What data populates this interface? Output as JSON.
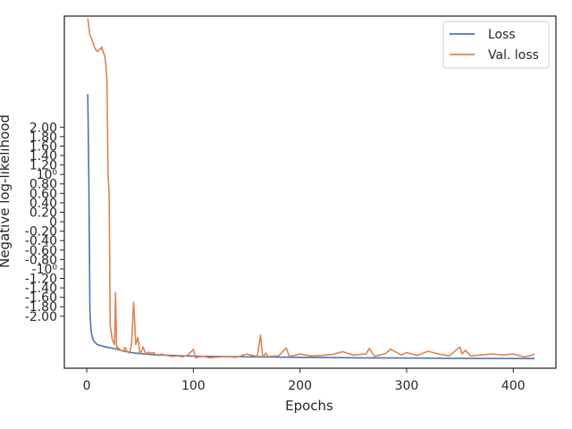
{
  "chart_data": {
    "type": "line",
    "xlabel": "Epochs",
    "ylabel": "Negative log-likelihood",
    "xlim": [
      -21,
      440
    ],
    "ylim": [
      -3.1,
      4.35
    ],
    "xticks": [
      0,
      100,
      200,
      300,
      400
    ],
    "yticks": [
      -2.0,
      -1.8,
      -1.6,
      -1.4,
      -1.2,
      -1.0,
      -0.8,
      -0.6,
      -0.4,
      -0.2,
      0.0,
      0.2,
      0.4,
      0.6,
      0.8,
      1.0,
      1.2,
      1.4,
      1.6,
      1.8,
      2.0
    ],
    "ytick_labels": [
      "-2.00",
      "-1.80",
      "-1.60",
      "-1.40",
      "-1.20",
      "-10⁰",
      "-0.80",
      "-0.60",
      "-0.40",
      "-0.20",
      "0",
      "0.20",
      "0.40",
      "0.60",
      "0.80",
      "10⁰",
      "1.20",
      "1.40",
      "1.60",
      "1.80",
      "2.00"
    ],
    "grid": false,
    "legend_position": "top-right",
    "series": [
      {
        "name": "Loss",
        "color": "#4c72b0",
        "x": [
          1,
          2,
          3,
          4,
          5,
          6,
          8,
          10,
          13,
          16,
          20,
          25,
          30,
          35,
          40,
          45,
          50,
          55,
          60,
          70,
          80,
          90,
          100,
          120,
          140,
          160,
          180,
          200,
          230,
          260,
          300,
          340,
          380,
          420
        ],
        "y": [
          2.7,
          0.9,
          -1.9,
          -2.3,
          -2.42,
          -2.5,
          -2.56,
          -2.6,
          -2.62,
          -2.64,
          -2.66,
          -2.68,
          -2.71,
          -2.74,
          -2.76,
          -2.78,
          -2.79,
          -2.8,
          -2.81,
          -2.82,
          -2.83,
          -2.84,
          -2.845,
          -2.85,
          -2.855,
          -2.86,
          -2.865,
          -2.87,
          -2.875,
          -2.88,
          -2.885,
          -2.89,
          -2.893,
          -2.895
        ]
      },
      {
        "name": "Val. loss",
        "color": "#dd8452",
        "x": [
          1,
          3,
          5,
          7,
          9,
          10,
          11,
          12,
          13,
          14,
          15,
          17,
          18,
          19,
          20,
          21,
          22,
          24,
          26,
          27,
          28,
          29,
          30,
          32,
          34,
          36,
          38,
          40,
          42,
          44,
          45,
          46,
          48,
          50,
          53,
          55,
          58,
          60,
          63,
          65,
          68,
          70,
          75,
          80,
          85,
          90,
          95,
          100,
          102,
          105,
          110,
          115,
          120,
          125,
          130,
          140,
          150,
          160,
          163,
          165,
          168,
          170,
          180,
          187,
          190,
          200,
          210,
          220,
          230,
          240,
          250,
          262,
          265,
          270,
          280,
          285,
          295,
          300,
          310,
          320,
          330,
          340,
          350,
          352,
          355,
          360,
          370,
          380,
          390,
          400,
          410,
          415,
          420
        ],
        "y": [
          4.3,
          3.95,
          3.85,
          3.7,
          3.62,
          3.6,
          3.62,
          3.65,
          3.65,
          3.7,
          3.62,
          3.5,
          3.3,
          3.0,
          1.0,
          0.6,
          -2.2,
          -2.5,
          -2.6,
          -1.5,
          -2.7,
          -2.65,
          -2.68,
          -2.72,
          -2.74,
          -2.66,
          -2.75,
          -2.78,
          -2.6,
          -1.7,
          -2.1,
          -2.6,
          -2.45,
          -2.8,
          -2.65,
          -2.8,
          -2.76,
          -2.78,
          -2.77,
          -2.82,
          -2.83,
          -2.8,
          -2.83,
          -2.85,
          -2.84,
          -2.86,
          -2.82,
          -2.7,
          -2.88,
          -2.86,
          -2.85,
          -2.88,
          -2.87,
          -2.86,
          -2.85,
          -2.87,
          -2.8,
          -2.85,
          -2.4,
          -2.87,
          -2.78,
          -2.85,
          -2.84,
          -2.67,
          -2.85,
          -2.8,
          -2.84,
          -2.83,
          -2.81,
          -2.75,
          -2.82,
          -2.8,
          -2.68,
          -2.85,
          -2.79,
          -2.7,
          -2.82,
          -2.77,
          -2.83,
          -2.74,
          -2.8,
          -2.84,
          -2.65,
          -2.8,
          -2.72,
          -2.84,
          -2.82,
          -2.8,
          -2.82,
          -2.8,
          -2.86,
          -2.84,
          -2.8
        ]
      }
    ]
  }
}
